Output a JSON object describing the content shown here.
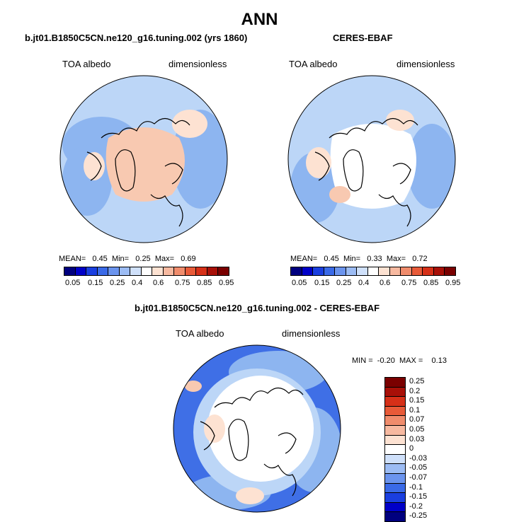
{
  "main_title": "ANN",
  "panels": [
    {
      "title": "b.jt01.B1850C5CN.ne120_g16.tuning.002 (yrs 1860)",
      "variable": "TOA albedo",
      "units": "dimensionless",
      "stats": {
        "mean_label": "MEAN=",
        "mean": "0.45",
        "min_label": "Min=",
        "min": "0.25",
        "max_label": "Max=",
        "max": "0.69"
      }
    },
    {
      "title": "CERES-EBAF",
      "variable": "TOA albedo",
      "units": "dimensionless",
      "stats": {
        "mean_label": "MEAN=",
        "mean": "0.45",
        "min_label": "Min=",
        "min": "0.33",
        "max_label": "Max=",
        "max": "0.72"
      }
    }
  ],
  "colorbar": {
    "colors": [
      "#00007f",
      "#0000c8",
      "#1a3fe0",
      "#3a6ae8",
      "#6b94ee",
      "#9cbcf4",
      "#cfe0fa",
      "#ffffff",
      "#fde2d2",
      "#f7b9a0",
      "#f08c6c",
      "#e85a38",
      "#d63018",
      "#a81008",
      "#7a0000"
    ],
    "tick_labels": [
      "0.05",
      "0.15",
      "0.25",
      "0.4",
      "0.6",
      "0.75",
      "0.85",
      "0.95"
    ]
  },
  "diff_panel": {
    "title": "b.jt01.B1850C5CN.ne120_g16.tuning.002 - CERES-EBAF",
    "variable": "TOA albedo",
    "units": "dimensionless",
    "stats": {
      "min_label": "MIN =",
      "min": "-0.20",
      "max_label": "MAX =",
      "max": "0.13"
    },
    "colorbar": {
      "colors": [
        "#7a0000",
        "#a81008",
        "#d63018",
        "#e85a38",
        "#f08c6c",
        "#f7b9a0",
        "#fde2d2",
        "#ffffff",
        "#cfe0fa",
        "#9cbcf4",
        "#6b94ee",
        "#3a6ae8",
        "#1a3fe0",
        "#0000c8",
        "#00007f"
      ],
      "labels": [
        "0.25",
        "0.2",
        "0.15",
        "0.1",
        "0.07",
        "0.05",
        "0.03",
        "0",
        "-0.03",
        "-0.05",
        "-0.07",
        "-0.1",
        "-0.15",
        "-0.2",
        "-0.25"
      ]
    }
  },
  "map_colors": {
    "ocean_blue": "#bcd6f7",
    "mid_blue": "#8db5f0",
    "deep_blue": "#3f6fe6",
    "ice_pink": "#f8c9b1",
    "light_pink": "#fde2d2",
    "white": "#ffffff",
    "coast": "#000000"
  }
}
